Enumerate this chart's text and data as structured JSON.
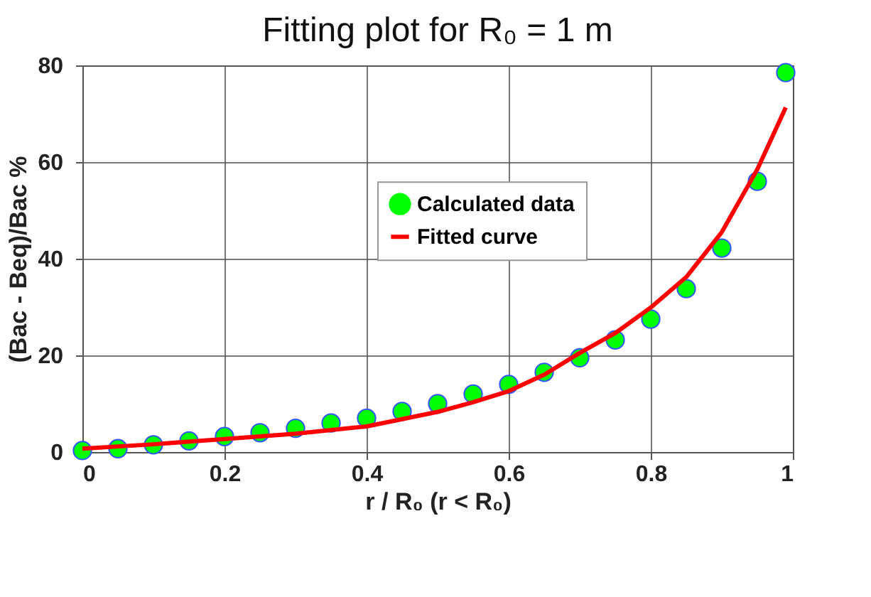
{
  "chart_data": {
    "type": "scatter",
    "title": "Fitting plot for R₀ = 1 m",
    "xlabel": "r / R₀ (r < R₀)",
    "ylabel": "(Bac - Beq)/Bac %",
    "xlim": [
      0,
      1
    ],
    "xticks": [
      0,
      0.2,
      0.4,
      0.6,
      0.8,
      1
    ],
    "ylim": [
      0,
      80
    ],
    "yticks": [
      0,
      20,
      40,
      60,
      80
    ],
    "grid": true,
    "legend": "right",
    "series": [
      {
        "name": "Calculated data",
        "type": "scatter",
        "marker": "circle",
        "color": "#00ff00",
        "x": [
          0,
          0.05,
          0.1,
          0.15,
          0.2,
          0.25,
          0.3,
          0.35,
          0.4,
          0.45,
          0.5,
          0.55,
          0.6,
          0.65,
          0.7,
          0.75,
          0.8,
          0.85,
          0.9,
          0.95,
          0.99
        ],
        "values": [
          0.3,
          0.7,
          1.5,
          2.3,
          3.2,
          4,
          4.9,
          6,
          7,
          8.4,
          10,
          12,
          14,
          16.5,
          19.5,
          23.2,
          27.5,
          33.8,
          42.2,
          56,
          78.5
        ]
      },
      {
        "name": "Fitted curve",
        "type": "line",
        "marker": "none",
        "line_style": "solid",
        "color": "#ff0000",
        "x": [
          0,
          0.1,
          0.2,
          0.3,
          0.4,
          0.45,
          0.5,
          0.55,
          0.6,
          0.65,
          0.7,
          0.75,
          0.8,
          0.85,
          0.9,
          0.95,
          0.99
        ],
        "values": [
          0.7,
          1.6,
          2.7,
          3.8,
          5.3,
          6.8,
          8.3,
          10.3,
          12.6,
          16,
          20.5,
          24.6,
          29.9,
          36.2,
          45.5,
          58.5,
          71.3
        ]
      }
    ]
  }
}
